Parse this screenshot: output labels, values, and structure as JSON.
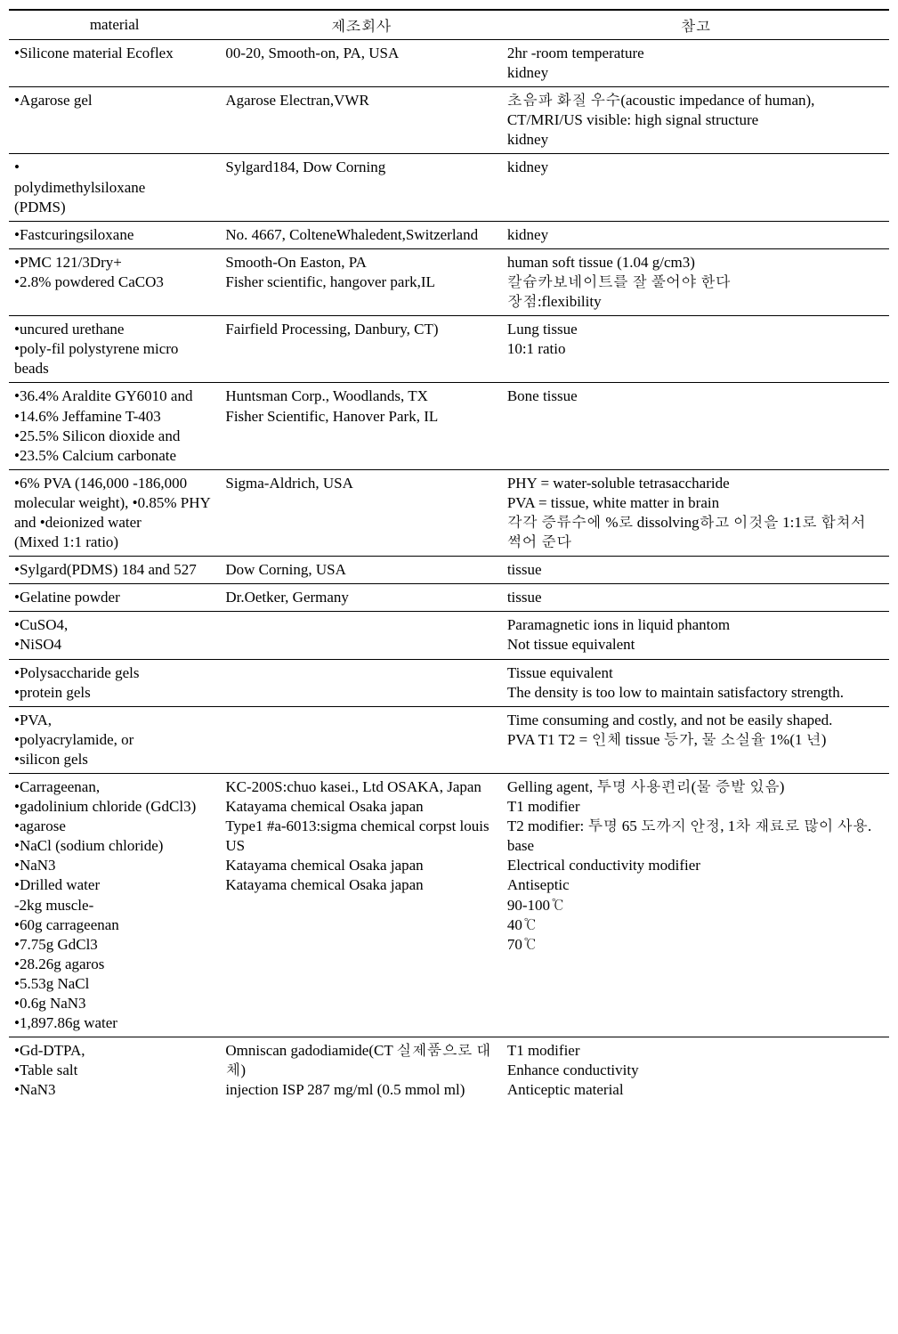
{
  "table": {
    "headers": {
      "material": "material",
      "manufacturer": "제조회사",
      "note": "참고"
    },
    "rows": [
      {
        "material": "•Silicone material Ecoflex",
        "manufacturer": "00-20, Smooth-on, PA, USA",
        "note": "2hr -room temperature\nkidney"
      },
      {
        "material": "•Agarose gel",
        "manufacturer": "Agarose Electran,VWR",
        "note": "초음파 화질 우수(acoustic impedance of human), CT/MRI/US visible: high signal structure\nkidney"
      },
      {
        "material": "•\npolydimethylsiloxane\n(PDMS)",
        "manufacturer": "Sylgard184, Dow Corning",
        "note": "kidney"
      },
      {
        "material": "•Fastcuringsiloxane",
        "manufacturer": "No. 4667, ColteneWhaledent,Switzerland",
        "note": "kidney"
      },
      {
        "material": "•PMC 121/3Dry+\n•2.8% powdered CaCO3",
        "manufacturer": "Smooth-On Easton, PA\nFisher scientific, hangover park,IL",
        "note": "human soft tissue (1.04 g/cm3)\n칼슘카보네이트를 잘 풀어야 한다\n장점:flexibility"
      },
      {
        "material": "•uncured urethane\n•poly-fil polystyrene micro beads",
        "manufacturer": "Fairfield Processing, Danbury, CT)",
        "note": "Lung tissue\n10:1 ratio"
      },
      {
        "material": "•36.4% Araldite GY6010 and •14.6% Jeffamine T-403\n•25.5% Silicon dioxide and •23.5% Calcium carbonate",
        "manufacturer": "Huntsman Corp., Woodlands, TX\nFisher Scientific, Hanover Park, IL",
        "note": "Bone tissue"
      },
      {
        "material": "•6% PVA (146,000 -186,000 molecular weight), •0.85% PHY and •deionized water\n(Mixed 1:1 ratio)",
        "manufacturer": "Sigma-Aldrich, USA",
        "note": "PHY = water-soluble tetrasaccharide\nPVA = tissue, white matter in brain\n각각 증류수에 %로 dissolving하고 이것을 1:1로 합쳐서 썩어 준다"
      },
      {
        "material": "•Sylgard(PDMS) 184 and 527",
        "manufacturer": "Dow Corning, USA",
        "note": "tissue"
      },
      {
        "material": "•Gelatine powder",
        "manufacturer": "Dr.Oetker, Germany",
        "note": "tissue"
      },
      {
        "material": "•CuSO4,\n•NiSO4",
        "manufacturer": "",
        "note": "Paramagnetic ions in liquid phantom\nNot tissue equivalent"
      },
      {
        "material": "•Polysaccharide gels\n•protein   gels",
        "manufacturer": "",
        "note": "Tissue equivalent\nThe density is too low to   maintain satisfactory strength."
      },
      {
        "material": "•PVA,\n•polyacrylamide, or\n•silicon   gels",
        "manufacturer": "",
        "note": "Time consuming and costly, and not be easily shaped.\nPVA T1 T2 = 인체 tissue 등가, 물 소실율   1%(1 년)"
      },
      {
        "material": "•Carrageenan,\n•gadolinium chloride (GdCl3)\n•agarose\n•NaCl (sodium chloride)\n•NaN3\n•Drilled water\n-2kg muscle-\n•60g carrageenan\n•7.75g GdCl3\n•28.26g agaros\n•5.53g NaCl\n•0.6g NaN3\n•1,897.86g water",
        "manufacturer": "KC-200S:chuo kasei., Ltd OSAKA,   Japan\nKatayama chemical Osaka japan\nType1 #a-6013:sigma chemical   corpst louis US\nKatayama chemical Osaka japan\nKatayama   chemical Osaka japan",
        "note": "Gelling agent, 투명 사용편리(물 증발 있음)\nT1 modifier\nT2 modifier: 투명 65 도까지 안정, 1차 재료로 많이 사용. base\nElectrical conductivity modifier\nAntiseptic\n90-100℃\n40℃\n70℃"
      },
      {
        "material": "•Gd-DTPA,\n•Table salt\n•NaN3",
        "manufacturer": "Omniscan gadodiamide(CT 실제품으로 대체)\ninjection ISP 287 mg/ml (0.5 mmol ml)",
        "note": "T1 modifier\nEnhance conductivity\nAnticeptic material"
      }
    ]
  }
}
